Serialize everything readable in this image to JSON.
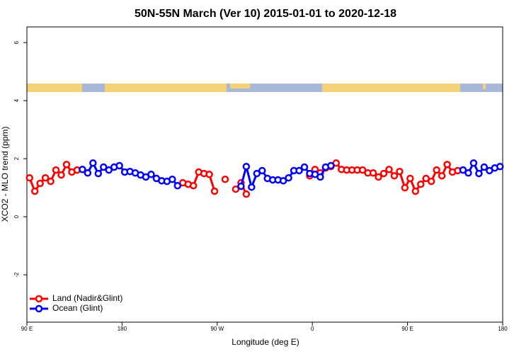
{
  "chart_data": {
    "type": "line",
    "title": "50N-55N March (Ver 10)   2015-01-01 to 2020-12-18",
    "x_label": "Longitude (deg E)",
    "y_label": "XCO2 - MLO trend (ppm)",
    "xlim": [
      90,
      540
    ],
    "ylim": [
      -3.63,
      6.54
    ],
    "xticks": [
      {
        "value": 90,
        "label": "90 E"
      },
      180,
      {
        "value": 270,
        "label": "90 W"
      },
      {
        "value": 360,
        "label": "0"
      },
      {
        "value": 450,
        "label": "90 E"
      },
      {
        "value": 540,
        "label": "180"
      }
    ],
    "yticks": [
      -2,
      0,
      2,
      4,
      6
    ],
    "legend": "bottom-left",
    "x": [
      92.5,
      97.5,
      102.5,
      107.5,
      112.5,
      117.5,
      122.5,
      127.5,
      132.5,
      137.5,
      142.5,
      147.5,
      152.5,
      157.5,
      162.5,
      167.5,
      172.5,
      177.5,
      182.5,
      187.5,
      192.5,
      197.5,
      202.5,
      207.5,
      212.5,
      217.5,
      222.5,
      227.5,
      232.5,
      237.5,
      242.5,
      247.5,
      252.5,
      257.5,
      262.5,
      267.5,
      272.5,
      277.5,
      282.5,
      287.5,
      292.5,
      297.5,
      302.5,
      307.5,
      312.5,
      317.5,
      322.5,
      327.5,
      332.5,
      337.5,
      342.5,
      347.5,
      352.5,
      357.5,
      362.5,
      367.5,
      372.5,
      377.5,
      382.5,
      387.5,
      392.5,
      397.5,
      402.5,
      407.5,
      412.5,
      417.5,
      422.5,
      427.5,
      432.5,
      437.5,
      442.5,
      447.5,
      452.5,
      457.5,
      462.5,
      467.5,
      472.5,
      477.5,
      482.5,
      487.5,
      492.5,
      497.5,
      502.5,
      507.5,
      512.5,
      517.5,
      522.5,
      527.5,
      532.5,
      537.5
    ],
    "series": [
      {
        "name": "Land (Nadir&Glint)",
        "color": "#ff0000",
        "values": [
          1.34,
          0.88,
          1.15,
          1.34,
          1.22,
          1.61,
          1.44,
          1.8,
          1.54,
          1.61,
          1.63,
          null,
          null,
          null,
          null,
          null,
          null,
          null,
          null,
          null,
          null,
          null,
          null,
          null,
          null,
          null,
          null,
          null,
          null,
          1.17,
          1.12,
          1.07,
          1.54,
          1.49,
          1.46,
          0.88,
          null,
          1.29,
          null,
          0.95,
          1.17,
          0.78,
          null,
          null,
          null,
          null,
          null,
          null,
          null,
          null,
          null,
          null,
          null,
          1.41,
          1.63,
          1.51,
          1.68,
          1.73,
          1.85,
          1.63,
          1.61,
          1.61,
          1.61,
          1.61,
          1.51,
          1.51,
          1.37,
          1.49,
          1.63,
          1.41,
          1.56,
          1.0,
          1.32,
          0.88,
          1.12,
          1.32,
          1.22,
          1.61,
          1.41,
          1.8,
          1.54,
          1.59,
          1.61,
          null,
          null,
          null,
          null,
          null,
          null,
          null
        ]
      },
      {
        "name": "Ocean (Glint)",
        "color": "#0000ff",
        "values": [
          null,
          null,
          null,
          null,
          null,
          null,
          null,
          null,
          null,
          null,
          1.63,
          1.51,
          1.85,
          1.49,
          1.71,
          1.61,
          1.71,
          1.76,
          1.54,
          1.56,
          1.51,
          1.44,
          1.37,
          1.46,
          1.32,
          1.24,
          1.22,
          1.29,
          1.07,
          null,
          null,
          null,
          null,
          null,
          null,
          null,
          null,
          null,
          null,
          null,
          1.05,
          1.73,
          1.02,
          1.49,
          1.59,
          1.32,
          1.27,
          1.27,
          1.24,
          1.34,
          1.59,
          1.59,
          1.71,
          1.49,
          1.46,
          1.37,
          1.71,
          1.76,
          null,
          null,
          null,
          null,
          null,
          null,
          null,
          null,
          null,
          null,
          null,
          null,
          null,
          null,
          null,
          null,
          null,
          null,
          null,
          null,
          null,
          null,
          null,
          null,
          1.61,
          1.51,
          1.85,
          1.49,
          1.71,
          1.59,
          1.68,
          1.73
        ]
      }
    ]
  }
}
